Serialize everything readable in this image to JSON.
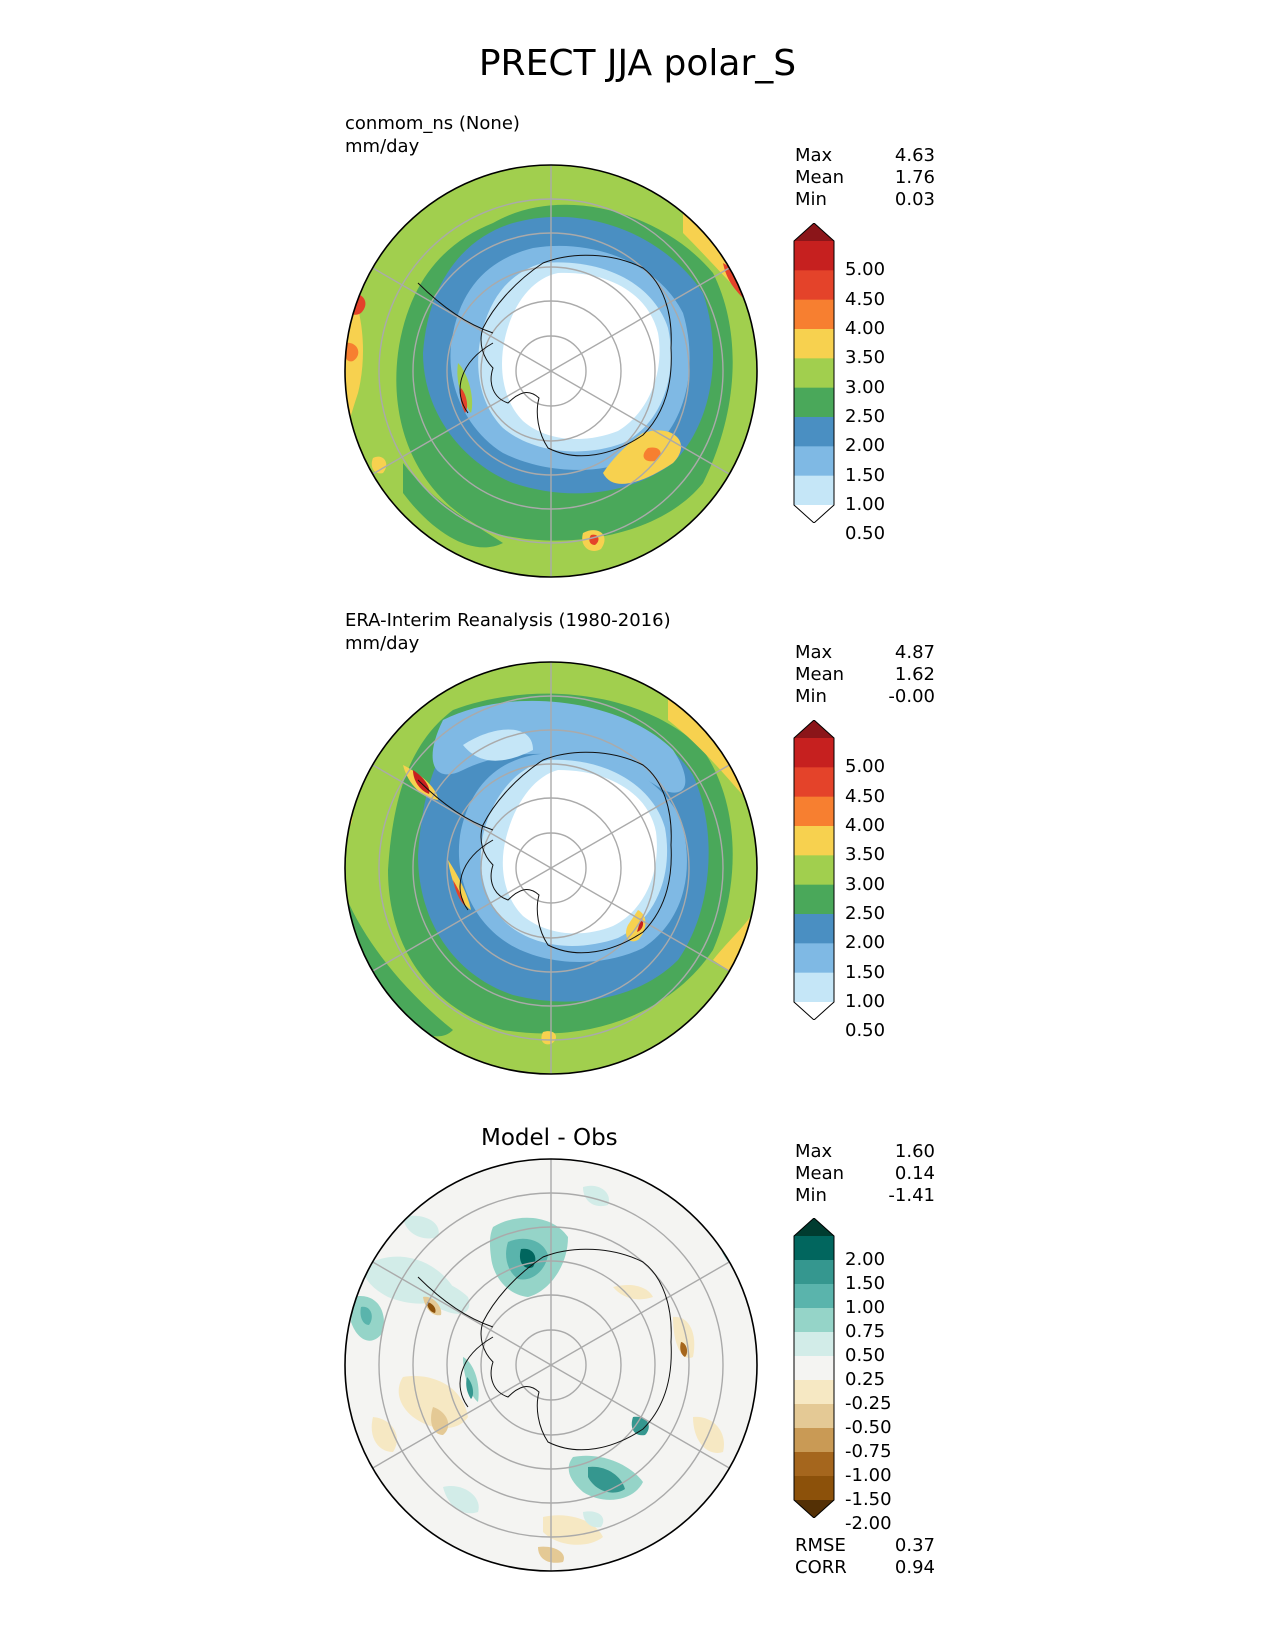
{
  "title": "PRECT JJA polar_S",
  "panels": [
    {
      "subtitle_line1": "conmom_ns (None)",
      "subtitle_line2": "mm/day",
      "stats": {
        "max_label": "Max",
        "max": "4.63",
        "mean_label": "Mean",
        "mean": "1.76",
        "min_label": "Min",
        "min": "0.03"
      },
      "colorbar": {
        "ticks": [
          "5.00",
          "4.50",
          "4.00",
          "3.50",
          "3.00",
          "2.50",
          "2.00",
          "1.50",
          "1.00",
          "0.50"
        ],
        "colors": [
          "#8b1519",
          "#c6201f",
          "#e4432a",
          "#f77f30",
          "#f7d14f",
          "#a1cf4e",
          "#4aa85a",
          "#4a8fc2",
          "#7fb9e4",
          "#c5e6f7",
          "#ffffff"
        ]
      }
    },
    {
      "subtitle_line1": "ERA-Interim Reanalysis (1980-2016)",
      "subtitle_line2": "mm/day",
      "stats": {
        "max_label": "Max",
        "max": "4.87",
        "mean_label": "Mean",
        "mean": "1.62",
        "min_label": "Min",
        "min": "-0.00"
      },
      "colorbar": {
        "ticks": [
          "5.00",
          "4.50",
          "4.00",
          "3.50",
          "3.00",
          "2.50",
          "2.00",
          "1.50",
          "1.00",
          "0.50"
        ],
        "colors": [
          "#8b1519",
          "#c6201f",
          "#e4432a",
          "#f77f30",
          "#f7d14f",
          "#a1cf4e",
          "#4aa85a",
          "#4a8fc2",
          "#7fb9e4",
          "#c5e6f7",
          "#ffffff"
        ]
      }
    },
    {
      "title": "Model - Obs",
      "stats": {
        "max_label": "Max",
        "max": "1.60",
        "mean_label": "Mean",
        "mean": "0.14",
        "min_label": "Min",
        "min": "-1.41"
      },
      "colorbar": {
        "ticks": [
          "2.00",
          "1.50",
          "1.00",
          "0.75",
          "0.50",
          "0.25",
          "-0.25",
          "-0.50",
          "-0.75",
          "-1.00",
          "-1.50",
          "-2.00"
        ],
        "colors": [
          "#003c30",
          "#01665e",
          "#35978f",
          "#5ab4ac",
          "#95d4c8",
          "#d2ece8",
          "#f4f4f2",
          "#f6e8c3",
          "#e4c995",
          "#c99a55",
          "#a5661d",
          "#8c510a",
          "#543005"
        ]
      },
      "metrics": {
        "rmse_label": "RMSE",
        "rmse": "0.37",
        "corr_label": "CORR",
        "corr": "0.94"
      }
    }
  ]
}
